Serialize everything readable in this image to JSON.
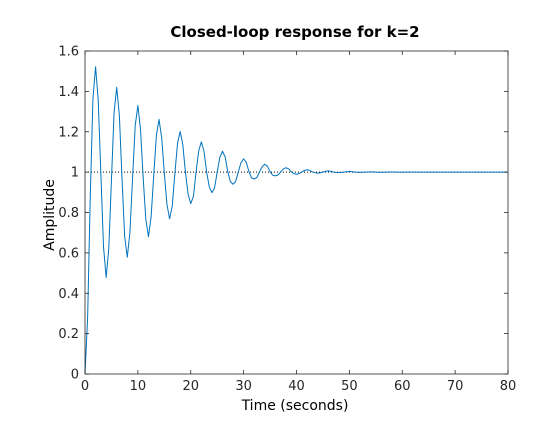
{
  "chart_data": {
    "type": "line",
    "title": "Closed-loop response for k=2",
    "xlabel": "Time (seconds)",
    "ylabel": "Amplitude",
    "xlim": [
      0,
      80
    ],
    "ylim": [
      0,
      1.6
    ],
    "xticks": [
      0,
      10,
      20,
      30,
      40,
      50,
      60,
      70,
      80
    ],
    "yticks": [
      0,
      0.2,
      0.4,
      0.6,
      0.8,
      1,
      1.2,
      1.4,
      1.6
    ],
    "grid": false,
    "legend": "none",
    "reference_line": {
      "y": 1,
      "style": "dotted",
      "color": "#000000"
    },
    "series": [
      {
        "color": "#0072BD",
        "x": [
          0,
          0.5,
          1.0,
          1.5,
          2.0,
          2.5,
          3.0,
          3.5,
          4.0,
          4.5,
          5.0,
          5.5,
          6.0,
          6.5,
          7.0,
          7.5,
          8.0,
          8.5,
          9.0,
          9.5,
          10.0,
          10.5,
          11.0,
          11.5,
          12.0,
          12.5,
          13.0,
          13.5,
          14.0,
          14.5,
          15.0,
          15.5,
          16.0,
          16.5,
          17.0,
          17.5,
          18.0,
          18.5,
          19.0,
          19.5,
          20.0,
          20.5,
          21.0,
          21.5,
          22.0,
          22.5,
          23.0,
          23.5,
          24.0,
          24.5,
          25.0,
          25.5,
          26.0,
          26.5,
          27.0,
          27.5,
          28.0,
          28.5,
          29.0,
          29.5,
          30.0,
          30.5,
          31.0,
          31.5,
          32.0,
          32.5,
          33.0,
          33.5,
          34.0,
          34.5,
          35.0,
          35.5,
          36.0,
          36.5,
          37.0,
          37.5,
          38.0,
          38.5,
          39.0,
          39.5,
          40.0,
          40.5,
          41.0,
          41.5,
          42.0,
          42.5,
          43.0,
          43.5,
          44.0,
          44.5,
          45.0,
          45.5,
          46.0,
          46.5,
          47.0,
          47.5,
          48.0,
          48.5,
          49.0,
          49.5,
          50.0,
          50.5,
          51.0,
          51.5,
          52.0,
          52.5,
          53.0,
          53.5,
          54.0,
          54.5,
          55.0,
          55.5,
          56.0,
          56.5,
          57.0,
          57.5,
          58.0,
          58.5,
          59.0,
          59.5,
          60.0,
          60.5,
          61.0,
          61.5,
          62.0,
          62.5,
          63.0,
          63.5,
          64.0,
          64.5,
          65.0,
          65.5,
          66.0,
          66.5,
          67.0,
          67.5,
          68.0,
          68.5,
          69.0,
          69.5,
          70.0,
          70.5,
          71.0,
          71.5,
          72.0,
          72.5,
          73.0,
          73.5,
          74.0,
          74.5,
          75.0,
          75.5,
          76.0,
          76.5,
          77.0,
          77.5,
          78.0,
          78.5,
          79.0,
          79.5,
          80.0
        ],
        "y": [
          0.0,
          0.2818,
          0.8848,
          1.3623,
          1.5218,
          1.3561,
          0.9936,
          0.6308,
          0.4783,
          0.6214,
          0.9597,
          1.2948,
          1.4199,
          1.2805,
          0.9684,
          0.6809,
          0.5786,
          0.7028,
          0.9727,
          1.2319,
          1.3299,
          1.2112,
          0.9737,
          0.7658,
          0.6803,
          0.7772,
          0.9841,
          1.1821,
          1.2611,
          1.1709,
          0.9944,
          0.8398,
          0.7687,
          0.8324,
          0.9933,
          1.143,
          1.2014,
          1.1349,
          0.9985,
          0.8902,
          0.8441,
          0.8791,
          0.9991,
          1.1051,
          1.1495,
          1.1045,
          1.0014,
          0.9273,
          0.8984,
          0.921,
          1.0011,
          1.0726,
          1.1034,
          1.0756,
          1.0025,
          0.9531,
          0.9399,
          0.9543,
          1.0011,
          1.0469,
          1.0656,
          1.0487,
          1.0029,
          0.9713,
          0.966,
          0.9735,
          1.0005,
          1.0273,
          1.0388,
          1.0292,
          1.0022,
          0.9848,
          0.9815,
          0.9857,
          1.0004,
          1.0152,
          1.0217,
          1.0165,
          1.0015,
          0.9926,
          0.9896,
          0.9927,
          1.0002,
          1.0081,
          1.0116,
          1.0087,
          1.0008,
          0.9966,
          0.9948,
          0.9968,
          1.0001,
          1.0041,
          1.0059,
          1.0045,
          1.0004,
          0.9983,
          0.9975,
          0.9985,
          1.0001,
          1.002,
          1.0029,
          1.0022,
          1.0002,
          0.9992,
          0.9988,
          0.9993,
          1.0,
          1.0009,
          1.0014,
          1.001,
          1.0001,
          0.9996,
          0.9994,
          0.9997,
          1.0,
          1.0004,
          1.0006,
          1.0005,
          1.0,
          0.9998,
          0.9997,
          0.9998,
          1.0,
          1.0002,
          1.0003,
          1.0002,
          1.0,
          0.9999,
          0.9999,
          0.9999,
          1.0,
          1.0001,
          1.0001,
          1.0001,
          1.0,
          1.0,
          1.0,
          1.0,
          1.0,
          1.0,
          1.0,
          1.0,
          1.0,
          1.0,
          1.0,
          1.0,
          1.0,
          1.0,
          1.0,
          1.0,
          1.0,
          1.0,
          1.0,
          1.0,
          1.0,
          1.0,
          1.0,
          1.0,
          1.0,
          1.0,
          1.0
        ]
      }
    ]
  }
}
